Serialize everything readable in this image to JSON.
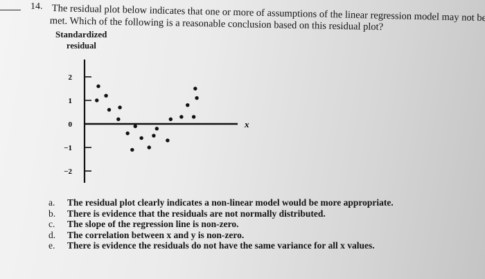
{
  "question": {
    "number": "14.",
    "line1": "The residual plot below indicates that one or more of assumptions of the linear regression model may not be",
    "line2": "met. Which of the following is a reasonable conclusion based on this residual plot?"
  },
  "options": [
    {
      "letter": "a.",
      "text": "The residual plot clearly indicates a non-linear model would be more appropriate."
    },
    {
      "letter": "b.",
      "text": "There is evidence that the residuals are not normally distributed."
    },
    {
      "letter": "c.",
      "text": "The slope of the regression line is non-zero."
    },
    {
      "letter": "d.",
      "text": "The correlation between x and y is non-zero."
    },
    {
      "letter": "e.",
      "text": "There is evidence the residuals do not have the same variance for all x values."
    }
  ],
  "chart_data": {
    "type": "scatter",
    "ylabel_line1": "Standardized",
    "ylabel_line2": "residual",
    "xlabel": "x",
    "ylim": [
      -2,
      2
    ],
    "yticks": [
      "2",
      "1",
      "0",
      "−1",
      "−2"
    ],
    "xlim": [
      0,
      10
    ],
    "grid": false,
    "points": [
      [
        0.8,
        1.0
      ],
      [
        0.9,
        1.6
      ],
      [
        1.4,
        1.2
      ],
      [
        1.6,
        0.6
      ],
      [
        2.3,
        0.7
      ],
      [
        2.2,
        0.2
      ],
      [
        2.8,
        -0.4
      ],
      [
        3.3,
        -0.1
      ],
      [
        3.1,
        -1.1
      ],
      [
        3.7,
        -0.6
      ],
      [
        4.2,
        -1.0
      ],
      [
        4.5,
        -0.5
      ],
      [
        4.7,
        -0.2
      ],
      [
        5.4,
        -0.7
      ],
      [
        5.6,
        0.2
      ],
      [
        6.3,
        0.3
      ],
      [
        6.7,
        0.8
      ],
      [
        7.1,
        0.3
      ],
      [
        7.2,
        1.5
      ],
      [
        7.3,
        1.1
      ]
    ]
  }
}
